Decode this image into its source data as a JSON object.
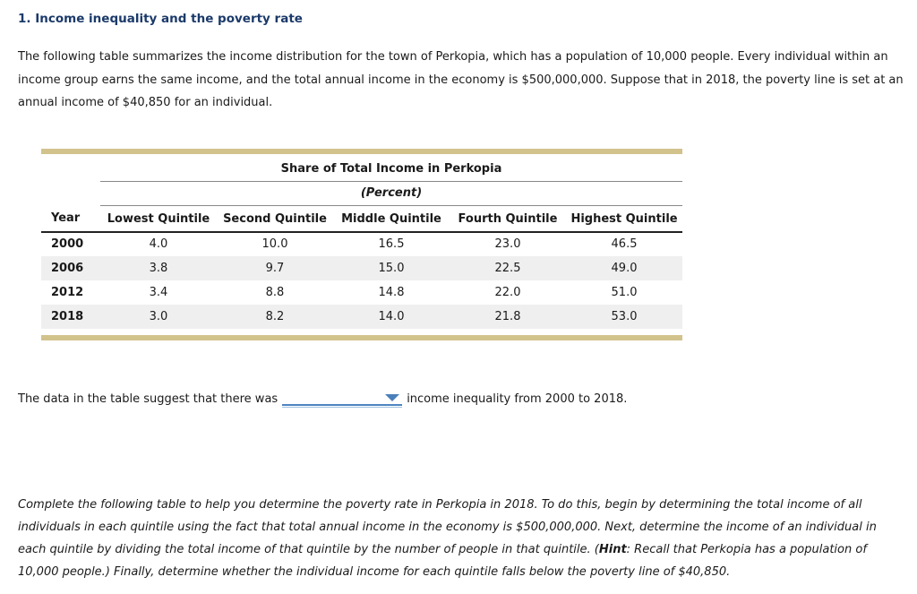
{
  "header": {
    "title": "1. Income inequality and the poverty rate"
  },
  "intro": {
    "text": "The following table summarizes the income distribution for the town of Perkopia, which has a population of 10,000 people. Every individual within an income group earns the same income, and the total annual income in the economy is $500,000,000. Suppose that in 2018, the poverty line is set at an annual income of $40,850 for an individual."
  },
  "table": {
    "title": "Share of Total Income in Perkopia",
    "subtitle": "(Percent)",
    "columns": [
      "Year",
      "Lowest Quintile",
      "Second Quintile",
      "Middle Quintile",
      "Fourth Quintile",
      "Highest Quintile"
    ],
    "rows": [
      {
        "year": "2000",
        "values": [
          "4.0",
          "10.0",
          "16.5",
          "23.0",
          "46.5"
        ]
      },
      {
        "year": "2006",
        "values": [
          "3.8",
          "9.7",
          "15.0",
          "22.5",
          "49.0"
        ]
      },
      {
        "year": "2012",
        "values": [
          "3.4",
          "8.8",
          "14.8",
          "22.0",
          "51.0"
        ]
      },
      {
        "year": "2018",
        "values": [
          "3.0",
          "8.2",
          "14.0",
          "21.8",
          "53.0"
        ]
      }
    ]
  },
  "question": {
    "before": "The data in the table suggest that there was",
    "dropdown_value": "",
    "after": "income inequality from 2000 to 2018."
  },
  "instructions": {
    "part1": "Complete the following table to help you determine the poverty rate in Perkopia in 2018. To do this, begin by determining the total income of all individuals in each quintile using the fact that total annual income in the economy is $500,000,000. Next, determine the income of an individual in each quintile by dividing the total income of that quintile by the number of people in that quintile. (",
    "hint_label": "Hint",
    "part2": ": Recall that Perkopia has a population of 10,000 people.) Finally, determine whether the individual income for each quintile falls below the poverty line of $40,850."
  },
  "colors": {
    "title_navy": "#1b3a6a",
    "table_accent_khaki": "#d2c28c",
    "row_shade_gray": "#efefef",
    "dropdown_blue": "#4d84c0",
    "dropdown_blue_light": "#9fc1e0"
  },
  "icons": {
    "dropdown_arrow": "chevron-down"
  }
}
